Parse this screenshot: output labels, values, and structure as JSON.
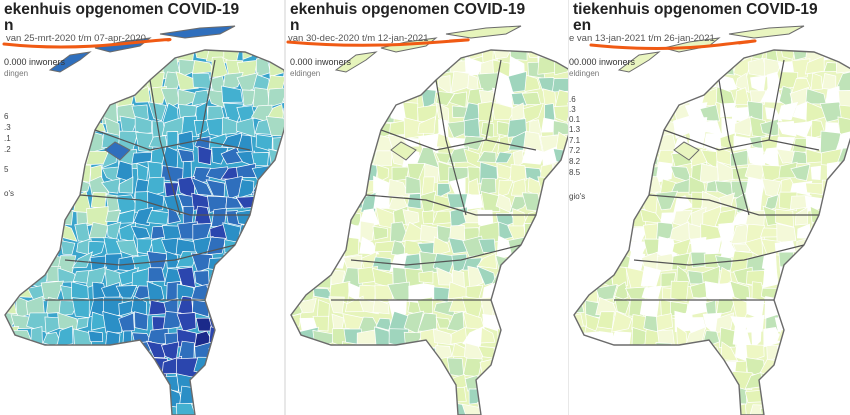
{
  "panels": [
    {
      "title": "ekenhuis opgenomen COVID-19\nn",
      "period": "van 25-mrt-2020 t/m 07-apr-2020",
      "unit": "0.000 inwoners",
      "sub": "dingen",
      "legend": [
        "6",
        ".3",
        ".1",
        ".2",
        "",
        "5"
      ],
      "footer": "o's",
      "palette": [
        "#1b2a8a",
        "#2b46ae",
        "#2f6fbd",
        "#2b8fc6",
        "#43b0d0",
        "#70c7cf",
        "#a6dbc4",
        "#d6efb3"
      ],
      "mapColor": "#3aa5cc"
    },
    {
      "title": "ekenhuis opgenomen COVID-19\nn",
      "period": "van 30-dec-2020 t/m 12-jan-2021",
      "unit": "0.000 inwoners",
      "sub": "eldingen",
      "legend": [
        "",
        "",
        "",
        "",
        "",
        ""
      ],
      "footer": "",
      "palette": [
        "#eef7c4",
        "#e3f3b5",
        "#d4edb0",
        "#ffffff",
        "#f4f9d9",
        "#bfe3b8",
        "#9fd5bd"
      ],
      "mapColor": "#e6f4bb"
    },
    {
      "title": "tiekenhuis opgenomen COVID-19\nen",
      "period": "e van 13-jan-2021 t/m 26-jan-2021",
      "unit": "00.000 inwoners",
      "sub": "eldingen",
      "legend": [
        ".6",
        ".3",
        "0.1",
        "1.3",
        "7.1",
        "7.2",
        "8.2",
        "8.5"
      ],
      "footer": "gio's",
      "palette": [
        "#ffffff",
        "#eef7c4",
        "#e3f3b5",
        "#ffffff",
        "#d4edb0",
        "#f4f9d9",
        "#bfe3b8"
      ],
      "mapColor": "#e9f5c0"
    }
  ],
  "annotation": {
    "underline_color": "#f05a14"
  }
}
